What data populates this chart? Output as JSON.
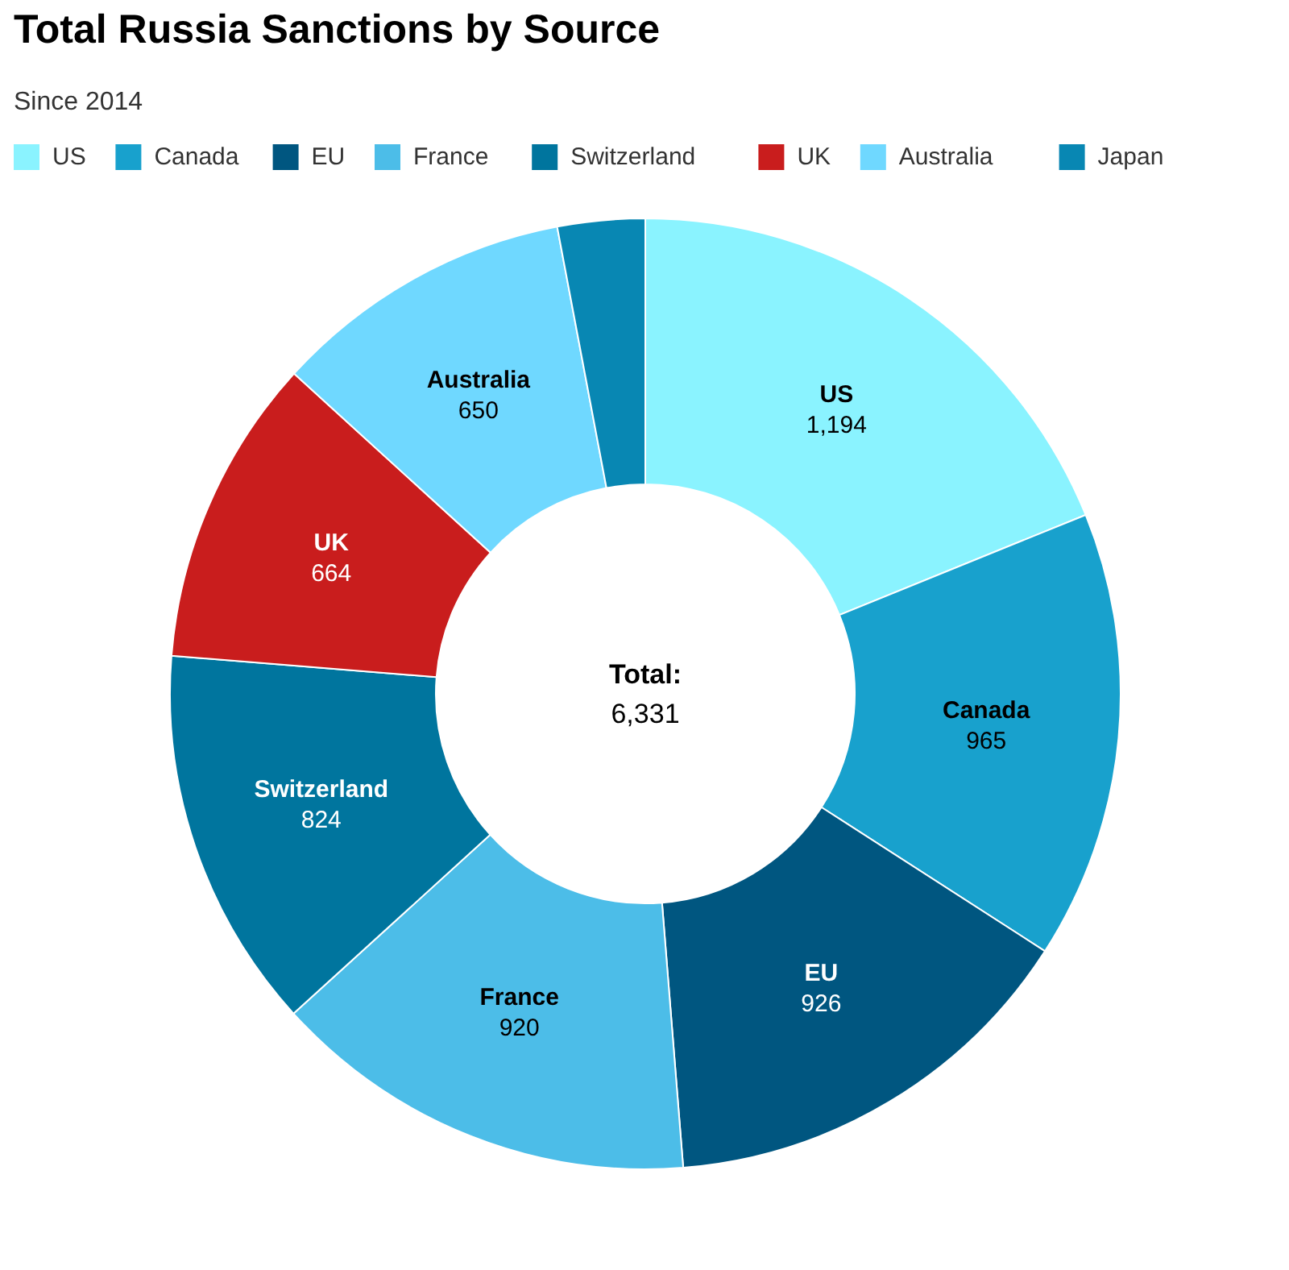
{
  "chart_data": {
    "type": "donut",
    "title": "Total Russia Sanctions by Source",
    "subtitle": "Since 2014",
    "categories": [
      "US",
      "Canada",
      "EU",
      "France",
      "Switzerland",
      "UK",
      "Australia",
      "Japan"
    ],
    "values": [
      1194,
      965,
      926,
      920,
      824,
      664,
      650,
      188
    ],
    "colors": [
      "#8af3ff",
      "#18a1cd",
      "#005680",
      "#4cbde8",
      "#00759e",
      "#c91d1d",
      "#6fd8ff",
      "#0887b3"
    ],
    "value_labels": [
      "1,194",
      "965",
      "926",
      "920",
      "824",
      "664",
      "650",
      null
    ],
    "annotations": [
      "Total:",
      "6,331"
    ],
    "legend": "top"
  }
}
